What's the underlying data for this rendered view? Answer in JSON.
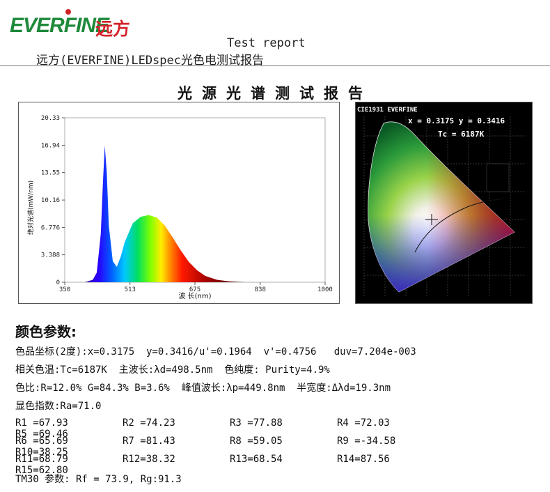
{
  "logo": {
    "brand": "EVERFINE",
    "brand_cn": "远方"
  },
  "header": {
    "title": "Test report",
    "subtitle": "远方(EVERFINE)LEDspec光色电测试报告"
  },
  "main_title": "光源光谱测试报告",
  "spectrum": {
    "ylabel": "绝对光谱(mW/nm)",
    "xlabel": "波 长(nm)",
    "y_ticks": [
      "20.33",
      "16.94",
      "13.55",
      "10.16",
      "6.776",
      "3.388",
      "0"
    ],
    "x_ticks": [
      "350",
      "513",
      "675",
      "838",
      "1000"
    ]
  },
  "cie": {
    "label": "CIE1931 EVERFINE",
    "coords": "x = 0.3175 y = 0.3416",
    "tc": "Tc = 6187K"
  },
  "params": {
    "heading": "颜色参数:",
    "line1": "色品坐标(2度):x=0.3175  y=0.3416/u'=0.1964  v'=0.4756   duv=7.204e-003",
    "line2": "相关色温:Tc=6187K  主波长:λd=498.5nm  色纯度: Purity=4.9%",
    "line3": "色比:R=12.0% G=84.3% B=3.6%  峰值波长:λp=449.8nm  半宽度:Δλd=19.3nm",
    "line4": "显色指数:Ra=71.0",
    "r_rows": [
      [
        "R1 =67.93",
        "R2 =74.23",
        "R3 =77.88",
        "R4 =72.03",
        "R5 =69.46"
      ],
      [
        "R6 =65.69",
        "R7 =81.43",
        "R8 =59.05",
        "R9 =-34.58",
        "R10=38.25"
      ],
      [
        "R11=68.79",
        "R12=38.32",
        "R13=68.54",
        "R14=87.56",
        "R15=62.80"
      ]
    ],
    "tm30": "TM30 参数: Rf = 73.9, Rg:91.3"
  },
  "chart_data": {
    "type": "area",
    "title": "",
    "xlabel": "波 长(nm)",
    "ylabel": "绝对光谱(mW/nm)",
    "xlim": [
      350,
      1000
    ],
    "ylim": [
      0,
      20.33
    ],
    "x": [
      400,
      420,
      430,
      440,
      445,
      450,
      455,
      460,
      470,
      480,
      490,
      500,
      520,
      540,
      560,
      580,
      600,
      620,
      640,
      660,
      680,
      700,
      730,
      760,
      800
    ],
    "series": [
      {
        "values": [
          0,
          0.3,
          1.2,
          6.0,
          12.0,
          16.9,
          13.5,
          7.0,
          2.6,
          1.9,
          3.2,
          5.0,
          7.3,
          8.1,
          8.3,
          8.0,
          7.0,
          5.5,
          3.9,
          2.5,
          1.5,
          0.8,
          0.3,
          0.1,
          0
        ]
      }
    ]
  }
}
